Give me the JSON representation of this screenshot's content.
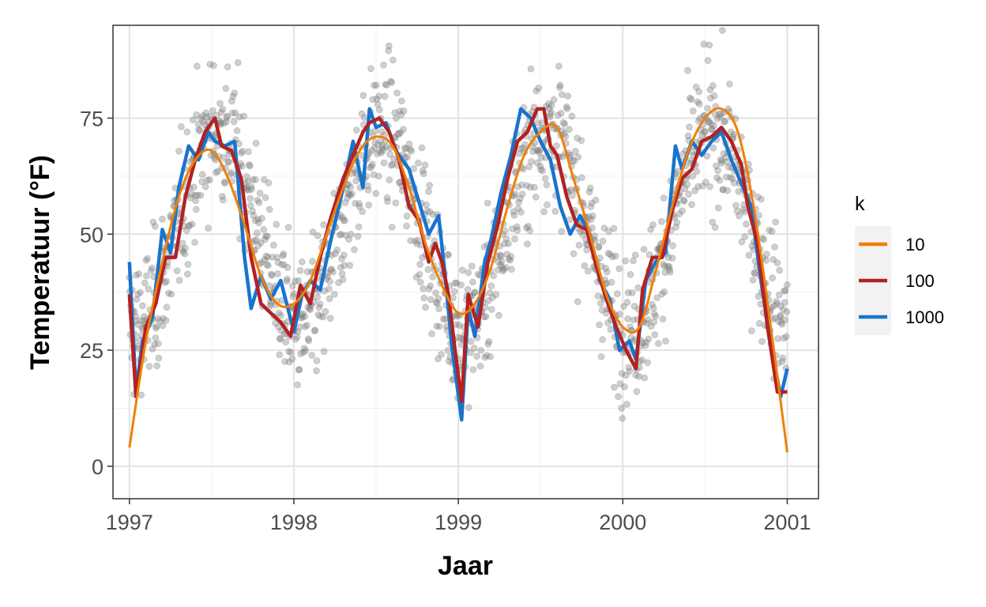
{
  "chart_data": {
    "type": "scatter",
    "xlabel": "Jaar",
    "ylabel": "Temperatuur (°F)",
    "xlim": [
      1996.9,
      2001.19
    ],
    "ylim": [
      -7,
      95
    ],
    "x_ticks": [
      1997,
      1998,
      1999,
      2000,
      2001
    ],
    "x_tick_labels": [
      "1997",
      "1998",
      "1999",
      "2000",
      "2001"
    ],
    "y_ticks": [
      0,
      25,
      50,
      75
    ],
    "y_tick_labels": [
      "0",
      "25",
      "50",
      "75"
    ],
    "grid": true,
    "legend": {
      "title": "k",
      "placement": "right",
      "items": [
        {
          "label": "10",
          "color": "#F07F09"
        },
        {
          "label": "100",
          "color": "#B22222"
        },
        {
          "label": "1000",
          "color": "#1874CD"
        }
      ]
    },
    "points_color": "#808080",
    "scatter_seasonal_model": {
      "description_of_points": "daily temperature observations",
      "x_range": [
        1997.0,
        2001.0
      ]
    },
    "series": [
      {
        "name": "1000",
        "color": "#1874CD",
        "x": [
          1997.0,
          1997.04,
          1997.08,
          1997.14,
          1997.2,
          1997.25,
          1997.3,
          1997.36,
          1997.42,
          1997.48,
          1997.52,
          1997.58,
          1997.64,
          1997.7,
          1997.74,
          1997.8,
          1997.86,
          1997.92,
          1998.0,
          1998.05,
          1998.1,
          1998.16,
          1998.22,
          1998.3,
          1998.36,
          1998.42,
          1998.46,
          1998.5,
          1998.56,
          1998.62,
          1998.7,
          1998.76,
          1998.82,
          1998.88,
          1998.92,
          1998.96,
          1999.02,
          1999.06,
          1999.1,
          1999.16,
          1999.2,
          1999.26,
          1999.32,
          1999.38,
          1999.44,
          1999.5,
          1999.56,
          1999.62,
          1999.68,
          1999.74,
          1999.8,
          1999.86,
          1999.92,
          1999.98,
          2000.04,
          2000.08,
          2000.14,
          2000.2,
          2000.26,
          2000.32,
          2000.36,
          2000.42,
          2000.48,
          2000.54,
          2000.6,
          2000.66,
          2000.72,
          2000.78,
          2000.84,
          2000.9,
          2000.96,
          2001.0
        ],
        "y": [
          44,
          16,
          27,
          32,
          51,
          46,
          60,
          69,
          66,
          72,
          70,
          69,
          70,
          45,
          34,
          41,
          36,
          40,
          29,
          37,
          40,
          38,
          48,
          60,
          70,
          60,
          77,
          73,
          74,
          68,
          64,
          57,
          50,
          54,
          41,
          26,
          10,
          34,
          28,
          44,
          49,
          59,
          67,
          77,
          75,
          70,
          66,
          56,
          50,
          54,
          50,
          40,
          36,
          25,
          27,
          23,
          40,
          44,
          46,
          69,
          64,
          70,
          67,
          70,
          72,
          66,
          61,
          56,
          40,
          26,
          15,
          21
        ]
      },
      {
        "name": "100",
        "color": "#B22222",
        "x": [
          1997.0,
          1997.04,
          1997.1,
          1997.16,
          1997.22,
          1997.28,
          1997.34,
          1997.4,
          1997.46,
          1997.52,
          1997.56,
          1997.62,
          1997.68,
          1997.74,
          1997.8,
          1997.86,
          1997.92,
          1997.98,
          1998.04,
          1998.1,
          1998.16,
          1998.22,
          1998.3,
          1998.36,
          1998.42,
          1998.46,
          1998.52,
          1998.58,
          1998.64,
          1998.7,
          1998.76,
          1998.82,
          1998.86,
          1998.9,
          1998.94,
          1998.98,
          1999.02,
          1999.06,
          1999.12,
          1999.18,
          1999.24,
          1999.3,
          1999.36,
          1999.42,
          1999.48,
          1999.52,
          1999.56,
          1999.6,
          1999.66,
          1999.72,
          1999.78,
          1999.84,
          1999.9,
          1999.96,
          2000.02,
          2000.08,
          2000.12,
          2000.18,
          2000.24,
          2000.3,
          2000.36,
          2000.42,
          2000.48,
          2000.54,
          2000.6,
          2000.66,
          2000.72,
          2000.76,
          2000.82,
          2000.88,
          2000.94,
          2001.0
        ],
        "y": [
          37,
          15,
          30,
          35,
          45,
          45,
          58,
          66,
          72,
          75,
          69,
          68,
          62,
          45,
          35,
          33,
          31,
          28,
          39,
          35,
          45,
          53,
          62,
          67,
          72,
          74,
          75,
          72,
          66,
          56,
          53,
          44,
          48,
          44,
          37,
          25,
          14,
          37,
          30,
          44,
          52,
          62,
          70,
          72,
          77,
          77,
          69,
          67,
          58,
          52,
          51,
          43,
          36,
          30,
          25,
          21,
          38,
          45,
          45,
          55,
          62,
          64,
          70,
          71,
          73,
          70,
          65,
          56,
          48,
          30,
          16,
          16
        ]
      },
      {
        "name": "10",
        "color": "#F07F09",
        "smooth": true,
        "x": [
          1997.0,
          1997.1,
          1997.2,
          1997.3,
          1997.4,
          1997.5,
          1997.6,
          1997.7,
          1997.8,
          1997.9,
          1998.0,
          1998.1,
          1998.2,
          1998.3,
          1998.4,
          1998.5,
          1998.6,
          1998.7,
          1998.8,
          1998.9,
          1999.0,
          1999.1,
          1999.2,
          1999.3,
          1999.4,
          1999.5,
          1999.6,
          1999.7,
          1999.8,
          1999.9,
          2000.0,
          2000.1,
          2000.2,
          2000.3,
          2000.4,
          2000.5,
          2000.6,
          2000.7,
          2000.8,
          2000.9,
          2001.0
        ],
        "y": [
          4,
          27,
          44,
          58,
          66,
          68,
          62,
          52,
          41,
          35,
          35,
          40,
          50,
          60,
          68,
          71,
          69,
          60,
          48,
          39,
          33,
          35,
          43,
          56,
          67,
          72,
          73,
          62,
          50,
          37,
          30,
          30,
          42,
          56,
          68,
          75,
          77,
          72,
          55,
          30,
          3
        ]
      }
    ]
  }
}
